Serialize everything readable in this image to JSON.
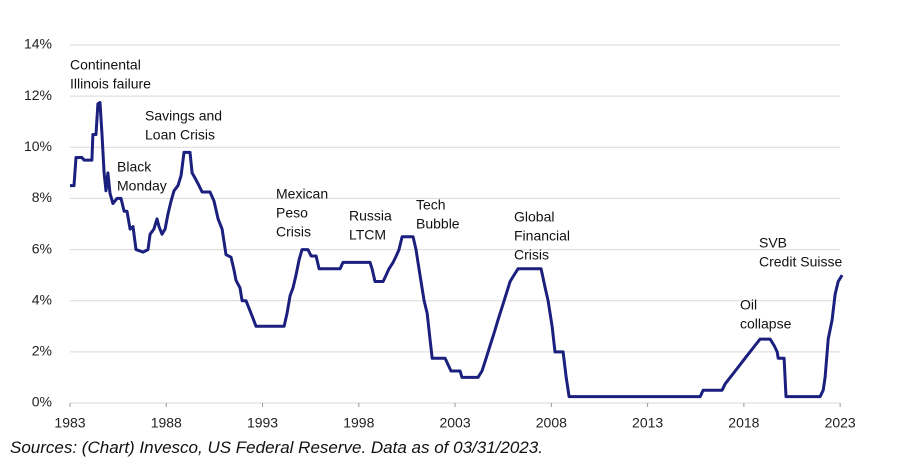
{
  "chart_data": {
    "type": "line",
    "x": [
      1983.0,
      1983.21,
      1983.31,
      1983.62,
      1983.73,
      1984.14,
      1984.19,
      1984.35,
      1984.45,
      1984.56,
      1984.66,
      1984.77,
      1984.87,
      1984.97,
      1985.08,
      1985.23,
      1985.44,
      1985.65,
      1985.81,
      1985.96,
      1986.12,
      1986.27,
      1986.43,
      1986.79,
      1987.05,
      1987.16,
      1987.36,
      1987.52,
      1987.62,
      1987.78,
      1987.94,
      1988.09,
      1988.25,
      1988.4,
      1988.61,
      1988.77,
      1988.92,
      1989.23,
      1989.34,
      1989.49,
      1989.7,
      1989.86,
      1990.27,
      1990.48,
      1990.69,
      1990.9,
      1991.1,
      1991.36,
      1991.52,
      1991.62,
      1991.83,
      1991.94,
      1992.14,
      1992.3,
      1992.51,
      1992.66,
      1994.12,
      1994.27,
      1994.43,
      1994.58,
      1994.74,
      1994.9,
      1995.05,
      1995.36,
      1995.52,
      1995.78,
      1995.94,
      1997.03,
      1997.18,
      1998.58,
      1998.69,
      1998.84,
      1999.26,
      1999.42,
      1999.57,
      1999.78,
      1999.94,
      2000.09,
      2000.25,
      2000.82,
      2000.97,
      2001.18,
      2001.39,
      2001.55,
      2001.7,
      2001.81,
      2002.48,
      2002.79,
      2003.26,
      2003.36,
      2004.19,
      2004.4,
      2004.61,
      2004.82,
      2005.03,
      2005.23,
      2005.44,
      2005.65,
      2005.86,
      2006.06,
      2006.27,
      2007.47,
      2007.68,
      2007.83,
      2008.04,
      2008.19,
      2008.61,
      2008.77,
      2008.92,
      2015.73,
      2015.88,
      2016.87,
      2017.03,
      2017.29,
      2017.55,
      2017.81,
      2018.06,
      2018.32,
      2018.58,
      2018.84,
      2019.36,
      2019.57,
      2019.73,
      2019.78,
      2020.09,
      2020.19,
      2021.96,
      2022.12,
      2022.22,
      2022.38,
      2022.58,
      2022.74,
      2022.9,
      2023.1
    ],
    "series": [
      {
        "color": "#1b1f7d",
        "values": [
          8.5,
          8.5,
          9.6,
          9.6,
          9.5,
          9.5,
          10.5,
          10.5,
          11.7,
          11.75,
          10.5,
          9.0,
          8.3,
          9.0,
          8.2,
          7.8,
          8.0,
          8.0,
          7.5,
          7.5,
          6.8,
          6.9,
          6.0,
          5.9,
          6.0,
          6.6,
          6.8,
          7.2,
          6.9,
          6.6,
          6.8,
          7.4,
          7.9,
          8.3,
          8.5,
          8.9,
          9.8,
          9.8,
          9.0,
          8.8,
          8.5,
          8.25,
          8.25,
          7.9,
          7.2,
          6.8,
          5.8,
          5.7,
          5.2,
          4.8,
          4.5,
          4.0,
          4.0,
          3.7,
          3.3,
          3.0,
          3.0,
          3.5,
          4.2,
          4.5,
          5.0,
          5.6,
          6.0,
          6.0,
          5.75,
          5.75,
          5.25,
          5.25,
          5.5,
          5.5,
          5.25,
          4.75,
          4.75,
          5.0,
          5.25,
          5.5,
          5.75,
          6.0,
          6.5,
          6.5,
          6.0,
          5.0,
          4.0,
          3.5,
          2.5,
          1.75,
          1.75,
          1.25,
          1.25,
          1.0,
          1.0,
          1.25,
          1.75,
          2.25,
          2.75,
          3.25,
          3.75,
          4.25,
          4.75,
          5.0,
          5.25,
          5.25,
          4.5,
          4.0,
          3.0,
          2.0,
          2.0,
          1.0,
          0.25,
          0.25,
          0.5,
          0.5,
          0.75,
          1.0,
          1.25,
          1.5,
          1.75,
          2.0,
          2.25,
          2.5,
          2.5,
          2.25,
          2.0,
          1.75,
          1.75,
          0.25,
          0.25,
          0.5,
          1.0,
          2.5,
          3.25,
          4.25,
          4.75,
          5.0
        ]
      }
    ],
    "xlim": [
      1983,
      2023.2
    ],
    "xticks": [
      1983,
      1988,
      1993,
      1998,
      2003,
      2008,
      2013,
      2018,
      2023
    ],
    "ylim": [
      0,
      14
    ],
    "yticks": [
      {
        "value": 0,
        "label": "0%"
      },
      {
        "value": 2,
        "label": "2%"
      },
      {
        "value": 4,
        "label": "4%"
      },
      {
        "value": 6,
        "label": "6%"
      },
      {
        "value": 8,
        "label": "8%"
      },
      {
        "value": 10,
        "label": "10%"
      },
      {
        "value": 12,
        "label": "12%"
      },
      {
        "value": 14,
        "label": "14%"
      }
    ],
    "grid": true,
    "annotations": [
      [
        "Continental",
        "Illinois failure"
      ],
      [
        "Savings and",
        "Loan Crisis"
      ],
      [
        "Black",
        "Monday"
      ],
      [
        "Mexican",
        "Peso",
        "Crisis"
      ],
      [
        "Russia",
        "LTCM"
      ],
      [
        "Tech",
        "Bubble"
      ],
      [
        "Global",
        "Financial",
        "Crisis"
      ],
      [
        "Oil",
        "collapse"
      ],
      [
        "SVB",
        "Credit Suisse"
      ]
    ],
    "source": "Sources: (Chart) Invesco, US Federal Reserve. Data as of 03/31/2023."
  }
}
